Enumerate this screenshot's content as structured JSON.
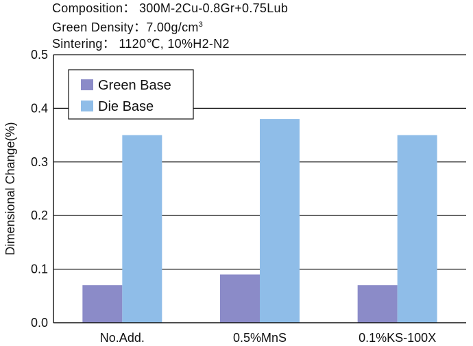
{
  "header": {
    "composition": "Composition： 300M-2Cu-0.8Gr+0.75Lub",
    "density_prefix": "Green Density：7.00g/cm",
    "density_sup": "3",
    "sintering": "Sintering： 1120℃, 10%H2-N2"
  },
  "chart_data": {
    "type": "bar",
    "categories": [
      "No.Add.",
      "0.5%MnS",
      "0.1%KS-100X"
    ],
    "series": [
      {
        "name": "Green Base",
        "values": [
          0.07,
          0.09,
          0.07
        ],
        "color": "#8b8bc8"
      },
      {
        "name": "Die Base",
        "values": [
          0.35,
          0.38,
          0.35
        ],
        "color": "#8fbde8"
      }
    ],
    "ylabel": "Dimensional Change(%)",
    "xlabel": "",
    "ylim": [
      0,
      0.5
    ],
    "yticks": [
      "0.0",
      "0.1",
      "0.2",
      "0.3",
      "0.4",
      "0.5"
    ],
    "grid": true,
    "legend_position": "top-left"
  }
}
